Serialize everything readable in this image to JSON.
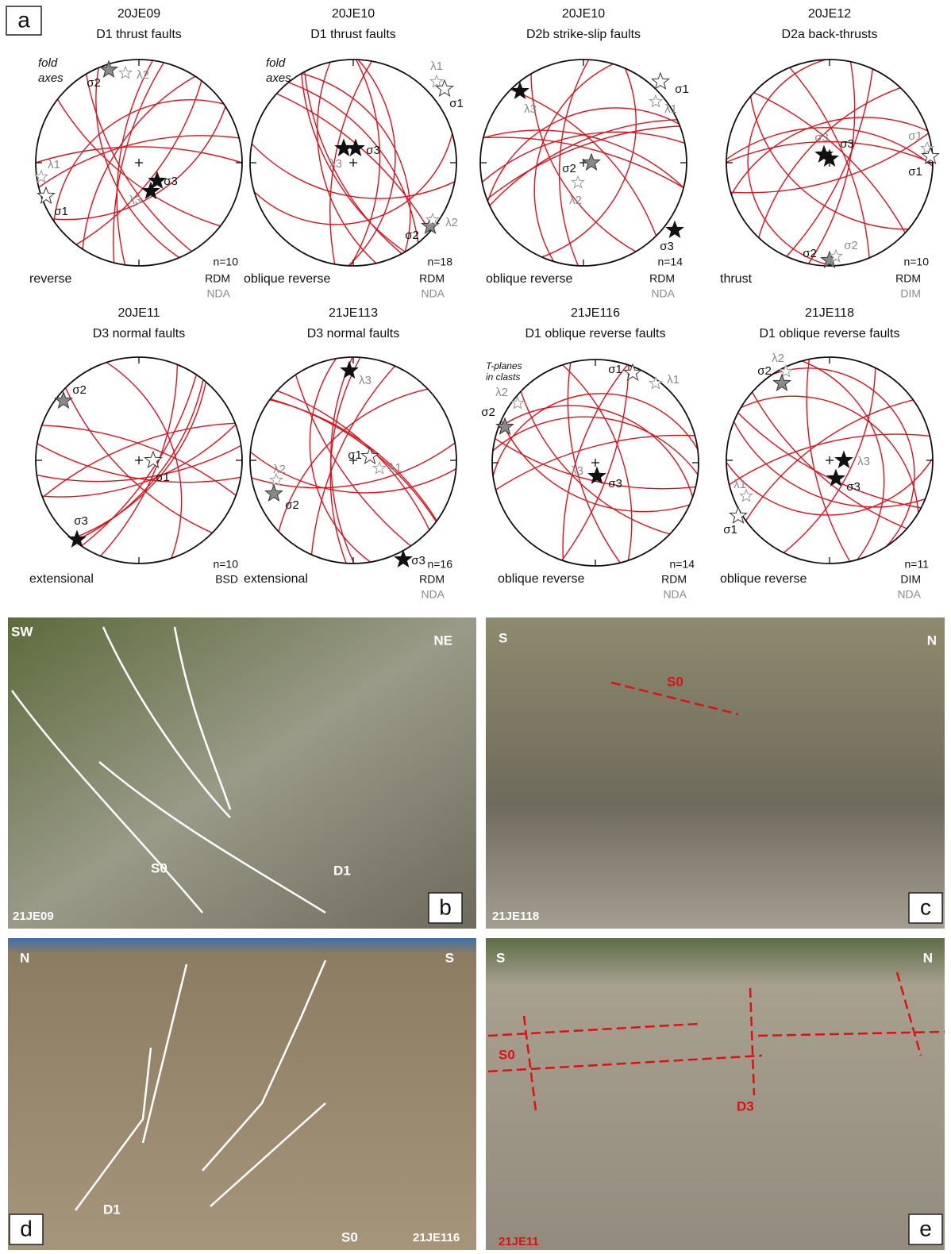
{
  "panel_a": {
    "label": "a",
    "stereonets": [
      {
        "sample": "20JE09",
        "title": "D1 thrust faults",
        "regime": "reverse",
        "n": "n=10",
        "methods": [
          "RDM",
          "NDA"
        ],
        "annotation": [
          "fold",
          "axes"
        ],
        "stars": [
          "σ2",
          "λ2",
          "σ3",
          "λ3",
          "λ1",
          "σ1"
        ]
      },
      {
        "sample": "20JE10",
        "title": "D1 thrust faults",
        "regime": "oblique reverse",
        "n": "n=18",
        "methods": [
          "RDM",
          "NDA"
        ],
        "annotation": [
          "fold",
          "axes"
        ],
        "stars": [
          "σ3",
          "λ3",
          "λ1",
          "σ1",
          "σ2",
          "λ2"
        ]
      },
      {
        "sample": "20JE10",
        "title": "D2b strike-slip faults",
        "regime": "oblique reverse",
        "n": "n=14",
        "methods": [
          "RDM",
          "NDA"
        ],
        "stars": [
          "λ3",
          "σ1",
          "λ1",
          "σ2",
          "λ2",
          "σ3"
        ]
      },
      {
        "sample": "20JE12",
        "title": "D2a back-thrusts",
        "regime": "thrust",
        "n": "n=10",
        "methods": [
          "RDM",
          "DIM"
        ],
        "stars": [
          "σ3",
          "σ3",
          "σ1",
          "σ1",
          "σ2",
          "σ2"
        ]
      },
      {
        "sample": "20JE11",
        "title": "D3 normal faults",
        "regime": "extensional",
        "n": "n=10",
        "methods": [
          "BSD"
        ],
        "stars": [
          "σ2",
          "σ1",
          "σ3"
        ]
      },
      {
        "sample": "21JE113",
        "title": "D3 normal faults",
        "regime": "extensional",
        "n": "n=16",
        "methods": [
          "RDM",
          "NDA"
        ],
        "stars": [
          "λ3",
          "σ1",
          "λ1",
          "λ2",
          "σ2",
          "σ3"
        ]
      },
      {
        "sample": "21JE116",
        "title": "D1 oblique reverse faults",
        "regime": "oblique reverse",
        "n": "n=14",
        "methods": [
          "RDM",
          "NDA"
        ],
        "annotation": [
          "T-planes",
          "in clasts"
        ],
        "stars": [
          "σ1",
          "λ1",
          "λ2",
          "σ2",
          "λ3",
          "σ3"
        ]
      },
      {
        "sample": "21JE118",
        "title": "D1 oblique reverse faults",
        "regime": "oblique reverse",
        "n": "n=11",
        "methods": [
          "DIM",
          "NDA"
        ],
        "stars": [
          "λ2",
          "σ2",
          "λ3",
          "σ3",
          "λ1",
          "σ1"
        ]
      }
    ]
  },
  "photos": [
    {
      "label": "b",
      "sample": "21JE09",
      "orientation": [
        "SW",
        "NE"
      ],
      "annotations": [
        "S0",
        "D1"
      ]
    },
    {
      "label": "c",
      "sample": "21JE118",
      "orientation": [
        "S",
        "N"
      ],
      "annotations": [
        "S0"
      ]
    },
    {
      "label": "d",
      "sample": "21JE116",
      "orientation": [
        "N",
        "S"
      ],
      "annotations": [
        "D1",
        "S0"
      ]
    },
    {
      "label": "e",
      "sample": "21JE11",
      "orientation": [
        "S",
        "N"
      ],
      "annotations": [
        "S0",
        "D3"
      ]
    }
  ]
}
